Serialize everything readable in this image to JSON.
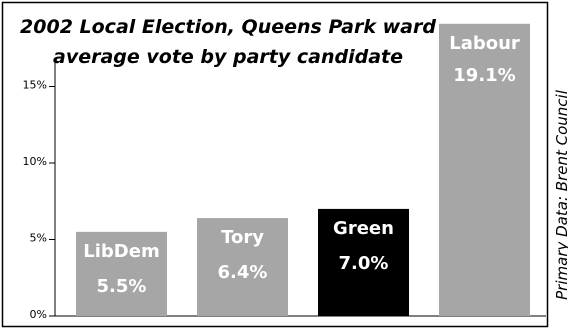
{
  "chart_data": {
    "type": "bar",
    "title_lines": [
      "2002 Local Election, Queens Park ward",
      "average vote by party candidate"
    ],
    "xlabel": "",
    "ylabel": "",
    "ylim": [
      0,
      17.5
    ],
    "yticks": [
      0,
      5,
      10,
      15
    ],
    "ytick_labels": [
      "0%",
      "5%",
      "10%",
      "15%"
    ],
    "grid": false,
    "categories": [
      "LibDem",
      "Tory",
      "Green",
      "Labour"
    ],
    "values": [
      5.5,
      6.4,
      7.0,
      19.1
    ],
    "value_labels": [
      "5.5%",
      "6.4%",
      "7.0%",
      "19.1%"
    ],
    "bar_colors": [
      "#a6a6a6",
      "#a6a6a6",
      "#000000",
      "#a6a6a6"
    ],
    "text_colors": [
      "#ffffff",
      "#ffffff",
      "#ffffff",
      "#ffffff"
    ],
    "source_note": "Primary Data: Brent Council"
  }
}
